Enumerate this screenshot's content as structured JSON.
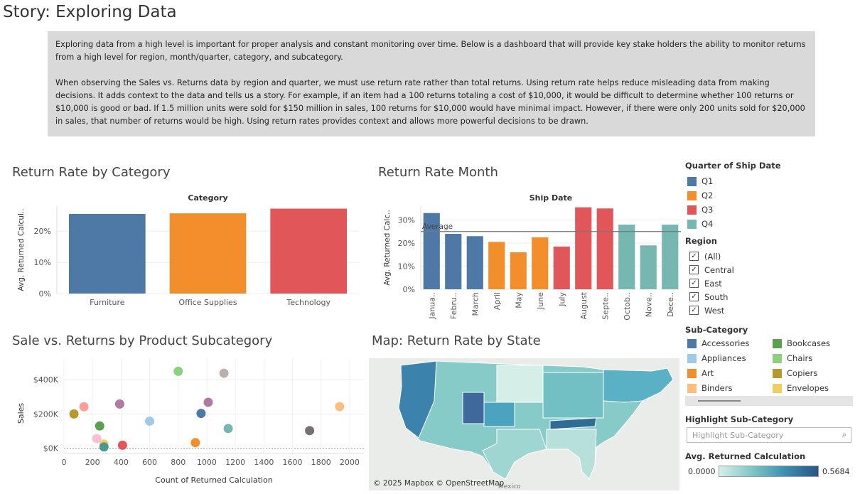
{
  "story_title": "Story: Exploring Data",
  "intro": {
    "p1": "Exploring data from a high level is important for proper analysis and constant monitoring over time.  Below is a dashboard that will provide key stake holders the ability to monitor returns from a high level for region, month/quarter, category, and subcategory.",
    "p2": "When observing the Sales vs. Returns data by region and quarter, we must use return rate rather than total returns.  Using return rate helps reduce misleading data from making decisions.  It adds context to the data and tells us a story. For example, if an item had a 100 returns totaling a cost of $10,000, it would be difficult to determine whether 100 returns or $10,000 is good or bad.  If 1.5 million units were sold for $150 million in sales, 100 returns for $10,000 would have minimal impact.  However, if there were only 200 units sold for $20,000 in sales, that number of returns would be high.  Using return rates provides context and allows more powerful decisions to be drawn."
  },
  "sheets": {
    "category_title": "Return Rate by Category",
    "month_title": "Return Rate Month",
    "scatter_title": "Sale vs. Returns by Product Subcategory",
    "map_title": "Map: Return Rate by State"
  },
  "legends": {
    "quarter": {
      "title": "Quarter of Ship Date",
      "items": [
        {
          "label": "Q1",
          "color": "#4e79a7"
        },
        {
          "label": "Q2",
          "color": "#f28e2b"
        },
        {
          "label": "Q3",
          "color": "#e15759"
        },
        {
          "label": "Q4",
          "color": "#76b7b2"
        }
      ]
    },
    "region": {
      "title": "Region",
      "items": [
        "(All)",
        "Central",
        "East",
        "South",
        "West"
      ]
    },
    "subcategory": {
      "title": "Sub-Category",
      "items": [
        {
          "label": "Accessories",
          "color": "#4e79a7"
        },
        {
          "label": "Bookcases",
          "color": "#59a14f"
        },
        {
          "label": "Appliances",
          "color": "#a0cbe8"
        },
        {
          "label": "Chairs",
          "color": "#8cd17d"
        },
        {
          "label": "Art",
          "color": "#f28e2b"
        },
        {
          "label": "Copiers",
          "color": "#b6992d"
        },
        {
          "label": "Binders",
          "color": "#ffbe7d"
        },
        {
          "label": "Envelopes",
          "color": "#f1ce63"
        }
      ]
    },
    "highlight": {
      "title": "Highlight Sub-Category",
      "placeholder": "Highlight Sub-Category"
    },
    "returned": {
      "title": "Avg. Returned Calculation",
      "min": "0.0000",
      "max": "0.5684"
    }
  },
  "map_credit": "© 2025 Mapbox © OpenStreetMap",
  "map_label_mexico": "Mexico",
  "chart_data": [
    {
      "type": "bar",
      "title": "Return Rate by Category",
      "header": "Category",
      "ylabel": "Avg. Returned Calcul..",
      "ylim": [
        0,
        0.28
      ],
      "yticks": [
        "0%",
        "10%",
        "20%"
      ],
      "categories": [
        "Furniture",
        "Office Supplies",
        "Technology"
      ],
      "values": [
        0.255,
        0.257,
        0.272
      ],
      "colors": [
        "#4e79a7",
        "#f28e2b",
        "#e15759"
      ]
    },
    {
      "type": "bar",
      "title": "Return Rate Month",
      "header": "Ship Date",
      "ylabel": "Avg. Returned Calc..",
      "ylim": [
        0,
        0.36
      ],
      "yticks": [
        "0%",
        "10%",
        "20%",
        "30%"
      ],
      "categories": [
        "Janua..",
        "Febru..",
        "March",
        "April",
        "May",
        "June",
        "July",
        "August",
        "Septe..",
        "Octob..",
        "Nove..",
        "Dece.."
      ],
      "values": [
        0.33,
        0.24,
        0.23,
        0.205,
        0.16,
        0.225,
        0.185,
        0.355,
        0.35,
        0.28,
        0.19,
        0.28
      ],
      "quarters": [
        "Q1",
        "Q1",
        "Q1",
        "Q2",
        "Q2",
        "Q2",
        "Q3",
        "Q3",
        "Q3",
        "Q4",
        "Q4",
        "Q4"
      ],
      "reference_line": {
        "label": "Average",
        "value": 0.25
      }
    },
    {
      "type": "scatter",
      "title": "Sale vs. Returns by Product Subcategory",
      "xlabel": "Count of Returned Calculation",
      "ylabel": "Sales",
      "xlim": [
        0,
        2100
      ],
      "ylim": [
        -30000,
        520000
      ],
      "xticks": [
        0,
        200,
        400,
        600,
        800,
        1000,
        1200,
        1400,
        1600,
        1800,
        2000
      ],
      "yticks": [
        {
          "v": 0,
          "label": "$0K"
        },
        {
          "v": 200000,
          "label": "$200K"
        },
        {
          "v": 400000,
          "label": "$400K"
        }
      ],
      "points": [
        {
          "x": 800,
          "y": 448000,
          "color": "#8cd17d"
        },
        {
          "x": 1120,
          "y": 437000,
          "color": "#bab0ac"
        },
        {
          "x": 1930,
          "y": 243000,
          "color": "#ffbe7d"
        },
        {
          "x": 1010,
          "y": 268000,
          "color": "#b07aa1"
        },
        {
          "x": 960,
          "y": 203000,
          "color": "#4e79a7"
        },
        {
          "x": 600,
          "y": 158000,
          "color": "#a0cbe8"
        },
        {
          "x": 1150,
          "y": 115000,
          "color": "#76b7b2"
        },
        {
          "x": 1720,
          "y": 103000,
          "color": "#79706e"
        },
        {
          "x": 920,
          "y": 33000,
          "color": "#f28e2b"
        },
        {
          "x": 390,
          "y": 258000,
          "color": "#b07aa1"
        },
        {
          "x": 140,
          "y": 242000,
          "color": "#ff9d9a"
        },
        {
          "x": 70,
          "y": 200000,
          "color": "#b6992d"
        },
        {
          "x": 250,
          "y": 130000,
          "color": "#59a14f"
        },
        {
          "x": 230,
          "y": 57000,
          "color": "#fabfd2"
        },
        {
          "x": 280,
          "y": 25000,
          "color": "#f1ce63"
        },
        {
          "x": 280,
          "y": 8000,
          "color": "#499894"
        },
        {
          "x": 410,
          "y": 18000,
          "color": "#e15759"
        }
      ]
    }
  ]
}
